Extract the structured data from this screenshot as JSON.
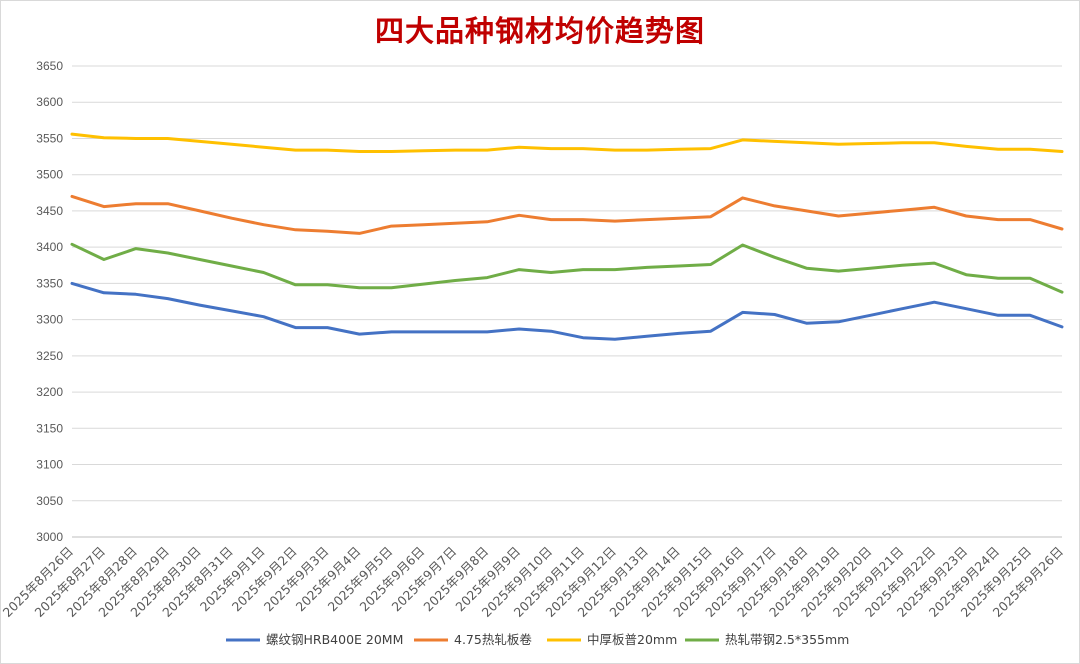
{
  "chart_data": {
    "type": "line",
    "title": "四大品种钢材均价趋势图",
    "ylim": [
      3000,
      3650
    ],
    "yticks": [
      3000,
      3050,
      3100,
      3150,
      3200,
      3250,
      3300,
      3350,
      3400,
      3450,
      3500,
      3550,
      3600,
      3650
    ],
    "grid": true,
    "legend_position": "bottom",
    "categories": [
      "2025年8月26日",
      "2025年8月27日",
      "2025年8月28日",
      "2025年8月29日",
      "2025年8月30日",
      "2025年8月31日",
      "2025年9月1日",
      "2025年9月2日",
      "2025年9月3日",
      "2025年9月4日",
      "2025年9月5日",
      "2025年9月6日",
      "2025年9月7日",
      "2025年9月8日",
      "2025年9月9日",
      "2025年9月10日",
      "2025年9月11日",
      "2025年9月12日",
      "2025年9月13日",
      "2025年9月14日",
      "2025年9月15日",
      "2025年9月16日",
      "2025年9月17日",
      "2025年9月18日",
      "2025年9月19日",
      "2025年9月20日",
      "2025年9月21日",
      "2025年9月22日",
      "2025年9月23日",
      "2025年9月24日",
      "2025年9月25日",
      "2025年9月26日"
    ],
    "series": [
      {
        "name": "螺纹钢HRB400E 20MM",
        "color": "#4472c4",
        "values": [
          3350,
          3337,
          3335,
          3329,
          3320,
          3312,
          3304,
          3289,
          3289,
          3280,
          3283,
          3283,
          3283,
          3283,
          3287,
          3284,
          3275,
          3273,
          3277,
          3281,
          3284,
          3310,
          3307,
          3295,
          3297,
          3306,
          3315,
          3324,
          3315,
          3306,
          3306,
          3290
        ]
      },
      {
        "name": "4.75热轧板卷",
        "color": "#ed7d31",
        "values": [
          3470,
          3456,
          3460,
          3460,
          3450,
          3440,
          3431,
          3424,
          3422,
          3419,
          3429,
          3431,
          3433,
          3435,
          3444,
          3438,
          3438,
          3436,
          3438,
          3440,
          3442,
          3468,
          3457,
          3450,
          3443,
          3447,
          3451,
          3455,
          3443,
          3438,
          3438,
          3425
        ]
      },
      {
        "name": "中厚板普20mm",
        "color": "#ffc000",
        "values": [
          3556,
          3551,
          3550,
          3550,
          3546,
          3542,
          3538,
          3534,
          3534,
          3532,
          3532,
          3533,
          3534,
          3534,
          3538,
          3536,
          3536,
          3534,
          3534,
          3535,
          3536,
          3548,
          3546,
          3544,
          3542,
          3543,
          3544,
          3544,
          3539,
          3535,
          3535,
          3532
        ]
      },
      {
        "name": "热轧带钢2.5*355mm",
        "color": "#70ad47",
        "values": [
          3404,
          3383,
          3398,
          3392,
          3383,
          3374,
          3365,
          3348,
          3348,
          3344,
          3344,
          3349,
          3354,
          3358,
          3369,
          3365,
          3369,
          3369,
          3372,
          3374,
          3376,
          3403,
          3386,
          3371,
          3367,
          3371,
          3375,
          3378,
          3362,
          3357,
          3357,
          3338
        ]
      }
    ]
  }
}
